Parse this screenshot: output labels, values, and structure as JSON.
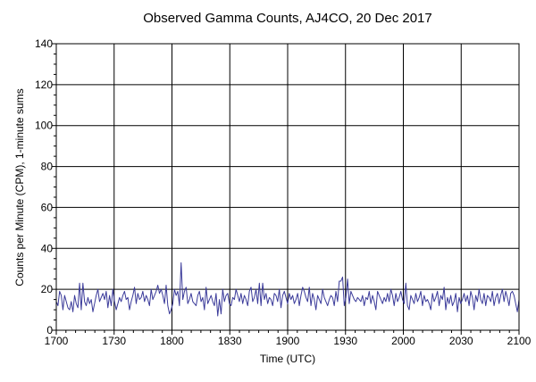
{
  "chart_data": {
    "type": "line",
    "title": "Observed Gamma Counts, AJ4CO, 20 Dec 2017",
    "xlabel": "Time (UTC)",
    "ylabel": "Counts per Minute (CPM), 1-minute sums",
    "x_ticks": [
      "1700",
      "1730",
      "1800",
      "1830",
      "1900",
      "1930",
      "2000",
      "2030",
      "2100"
    ],
    "y_ticks": [
      "0",
      "20",
      "40",
      "60",
      "80",
      "100",
      "120",
      "140"
    ],
    "xlim_minutes": [
      0,
      240
    ],
    "ylim": [
      0,
      140
    ],
    "grid": true,
    "line_color": "#3b3b9a",
    "series": [
      {
        "values": [
          14,
          12,
          19,
          17,
          10,
          17,
          14,
          11,
          10,
          14,
          9,
          17,
          13,
          11,
          23,
          10,
          23,
          14,
          12,
          16,
          13,
          15,
          9,
          13,
          17,
          20,
          14,
          16,
          18,
          15,
          19,
          11,
          17,
          12,
          20,
          14,
          10,
          13,
          16,
          14,
          17,
          19,
          15,
          16,
          10,
          14,
          17,
          21,
          13,
          18,
          15,
          16,
          19,
          14,
          17,
          15,
          12,
          20,
          15,
          17,
          19,
          22,
          18,
          20,
          17,
          13,
          22,
          12,
          8,
          10,
          13,
          20,
          17,
          19,
          12,
          33,
          15,
          19,
          21,
          13,
          15,
          18,
          14,
          13,
          12,
          17,
          19,
          14,
          16,
          10,
          21,
          13,
          15,
          17,
          14,
          12,
          18,
          7,
          15,
          8,
          20,
          14,
          17,
          18,
          13,
          12,
          16,
          15,
          20,
          17,
          14,
          18,
          13,
          17,
          15,
          12,
          19,
          21,
          14,
          16,
          20,
          13,
          23,
          12,
          23,
          15,
          18,
          13,
          16,
          15,
          12,
          18,
          17,
          14,
          20,
          11,
          17,
          19,
          16,
          13,
          18,
          15,
          17,
          13,
          15,
          18,
          12,
          17,
          21,
          19,
          16,
          14,
          21,
          12,
          18,
          15,
          10,
          17,
          15,
          13,
          20,
          16,
          14,
          12,
          15,
          17,
          16,
          12,
          19,
          14,
          24,
          24,
          26,
          12,
          16,
          25,
          13,
          19,
          17,
          15,
          14,
          16,
          15,
          14,
          17,
          12,
          16,
          15,
          19,
          13,
          17,
          14,
          10,
          19,
          17,
          15,
          13,
          16,
          14,
          18,
          14,
          20,
          17,
          12,
          18,
          14,
          16,
          19,
          15,
          13,
          23,
          12,
          10,
          17,
          15,
          13,
          18,
          14,
          16,
          19,
          12,
          17,
          14,
          15,
          13,
          10,
          18,
          14,
          16,
          19,
          12,
          17,
          15,
          21,
          10,
          16,
          13,
          17,
          12,
          14,
          18,
          9,
          16,
          13,
          15,
          18,
          14,
          17,
          12,
          19,
          16,
          10,
          17,
          14,
          20,
          15,
          13,
          18,
          12,
          17,
          16,
          14,
          19,
          12,
          16,
          18,
          13,
          17,
          20,
          14,
          19,
          16,
          12,
          18,
          19,
          17,
          13,
          9,
          15
        ]
      }
    ]
  }
}
